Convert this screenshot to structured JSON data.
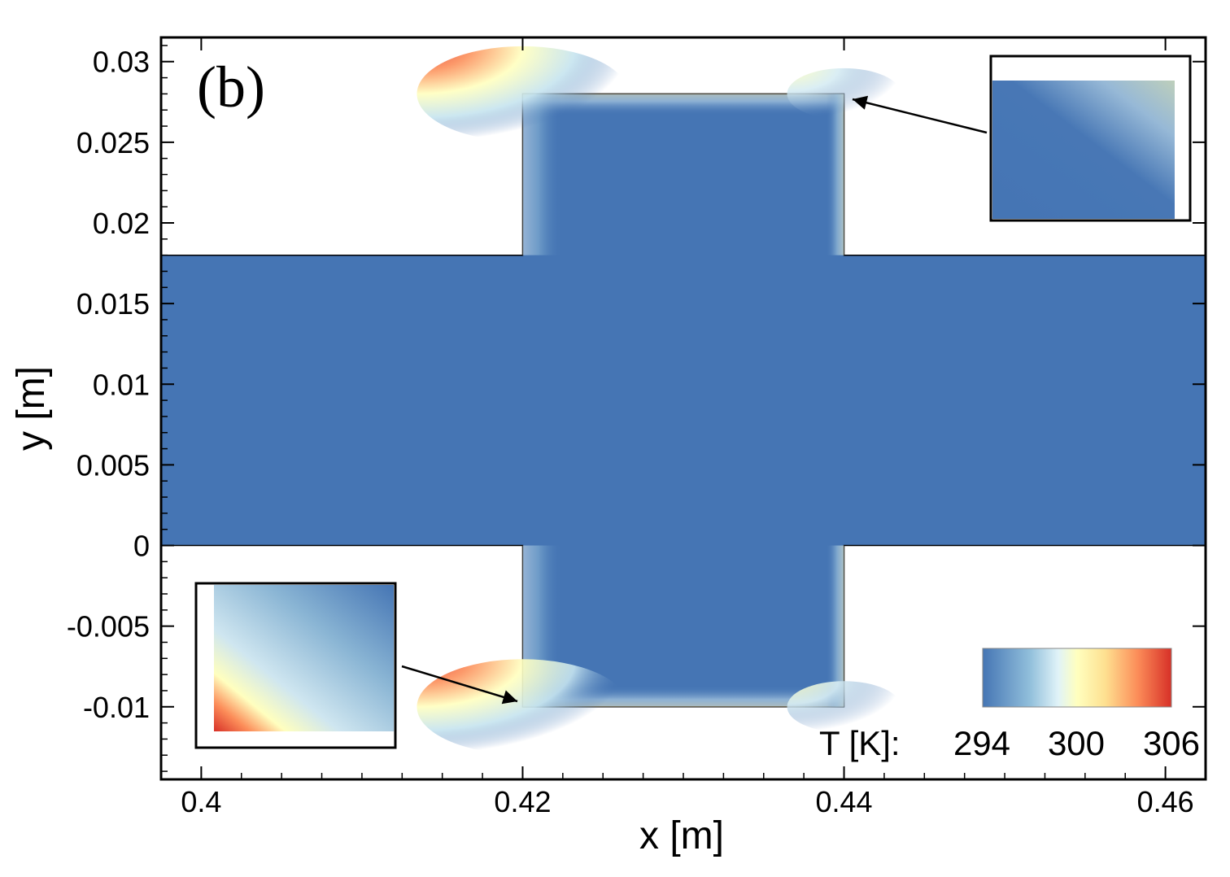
{
  "chart_data": {
    "type": "heatmap",
    "panel_label": "(b)",
    "xlabel": "x [m]",
    "ylabel": "y [m]",
    "xlim": [
      0.3975,
      0.4625
    ],
    "ylim": [
      -0.0145,
      0.0315
    ],
    "x_ticks": [
      0.4,
      0.42,
      0.44,
      0.46
    ],
    "x_tick_labels": [
      "0.4",
      "0.42",
      "0.44",
      "0.46"
    ],
    "y_ticks": [
      0.03,
      0.025,
      0.02,
      0.015,
      0.01,
      0.005,
      0,
      -0.005,
      -0.01
    ],
    "y_tick_labels": [
      "0.03",
      "0.025",
      "0.02",
      "0.015",
      "0.01",
      "0.005",
      "0",
      "-0.005",
      "-0.01"
    ],
    "domain": {
      "channel": {
        "x_range": [
          0.3975,
          0.4625
        ],
        "y_range": [
          0,
          0.018
        ]
      },
      "cavity": {
        "x_range": [
          0.42,
          0.44
        ],
        "y_range": [
          -0.01,
          0.028
        ]
      }
    },
    "field": {
      "bulk_temperature": 294,
      "hot_spots": [
        {
          "corner": "top-left",
          "x": 0.42,
          "y": 0.028,
          "temperature": 306
        },
        {
          "corner": "bottom-left",
          "x": 0.42,
          "y": -0.01,
          "temperature": 306
        },
        {
          "corner": "top-right",
          "x": 0.44,
          "y": 0.028,
          "temperature": 298
        },
        {
          "corner": "bottom-right",
          "x": 0.44,
          "y": -0.01,
          "temperature": 298
        }
      ]
    },
    "insets": [
      {
        "name": "top-right corner zoom",
        "points_to": {
          "x": 0.44,
          "y": 0.028
        }
      },
      {
        "name": "bottom-left corner zoom",
        "points_to": {
          "x": 0.42,
          "y": -0.01
        }
      }
    ],
    "colorbar": {
      "label": "T [K]:",
      "min": 294,
      "max": 306,
      "tick_labels": [
        "294",
        "300",
        "306"
      ],
      "colors": [
        "#4575b4",
        "#91bfdb",
        "#e0f3f8",
        "#ffffbf",
        "#fee090",
        "#fc8d59",
        "#d73027"
      ]
    }
  }
}
